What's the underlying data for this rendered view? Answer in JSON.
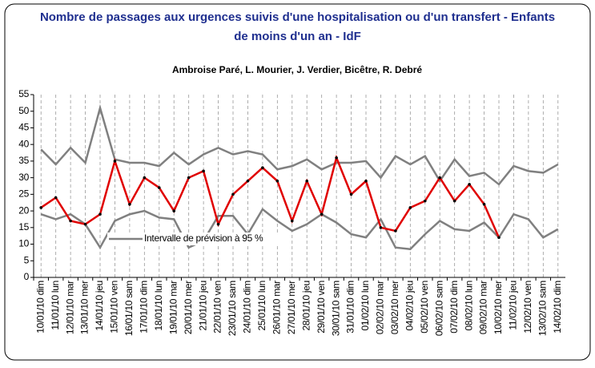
{
  "chart_data": {
    "type": "line",
    "title": "Nombre de passages aux urgences suivis d'une hospitalisation ou d'un transfert - Enfants de moins d'un an - IdF",
    "subtitle": "Ambroise Paré, L. Mourier, J. Verdier, Bicêtre, R. Debré",
    "categories": [
      "10/01/10 dim",
      "11/01/10 lun",
      "12/01/10 mar",
      "13/01/10 mer",
      "14/01/10 jeu",
      "15/01/10 ven",
      "16/01/10 sam",
      "17/01/10 dim",
      "18/01/10 lun",
      "19/01/10 mar",
      "20/01/10 mer",
      "21/01/10 jeu",
      "22/01/10 ven",
      "23/01/10 sam",
      "24/01/10 dim",
      "25/01/10 lun",
      "26/01/10 mar",
      "27/01/10 mer",
      "28/01/10 jeu",
      "29/01/10 ven",
      "30/01/10 sam",
      "31/01/10 dim",
      "01/02/10 lun",
      "02/02/10 mar",
      "03/02/10 mer",
      "04/02/10 jeu",
      "05/02/10 ven",
      "06/02/10 sam",
      "07/02/10 dim",
      "08/02/10 lun",
      "09/02/10 mar",
      "10/02/10 mer",
      "11/02/10 jeu",
      "12/02/10 ven",
      "13/02/10 sam",
      "14/02/10 dim"
    ],
    "series": [
      {
        "color": "#808080",
        "values": [
          38.5,
          34,
          39,
          34.5,
          51,
          35.5,
          34.5,
          34.5,
          33.5,
          37.5,
          34,
          37,
          39,
          37,
          38,
          37,
          32.5,
          33.5,
          35.5,
          32.5,
          34.5,
          34.5,
          35,
          30,
          36.5,
          34,
          36.5,
          29,
          35.5,
          30.5,
          31.5,
          28,
          33.5,
          32,
          31.5,
          34
        ]
      },
      {
        "name": "Intervalle de prévision à 95 %",
        "color": "#808080",
        "values": [
          19,
          17.5,
          19,
          16,
          9,
          17,
          19,
          20,
          18,
          17.5,
          9,
          11,
          18.5,
          18.5,
          13,
          20.5,
          17,
          14,
          16,
          19,
          16.5,
          13,
          12,
          17.5,
          9,
          8.5,
          13,
          17,
          14.5,
          14,
          16.5,
          12,
          19,
          17.5,
          12,
          14.5
        ]
      },
      {
        "color": "#e00000",
        "values": [
          21,
          24,
          17,
          16,
          19,
          35,
          22,
          30,
          27,
          20,
          30,
          32,
          16,
          25,
          29,
          33,
          29,
          17,
          29,
          19,
          36,
          25,
          29,
          15,
          14,
          21,
          23,
          30,
          23,
          28,
          22,
          12,
          null,
          null,
          null,
          null
        ]
      }
    ],
    "ylim": [
      0,
      55
    ],
    "yticks": [
      0,
      5,
      10,
      15,
      20,
      25,
      30,
      35,
      40,
      45,
      50,
      55
    ],
    "grid": true
  }
}
